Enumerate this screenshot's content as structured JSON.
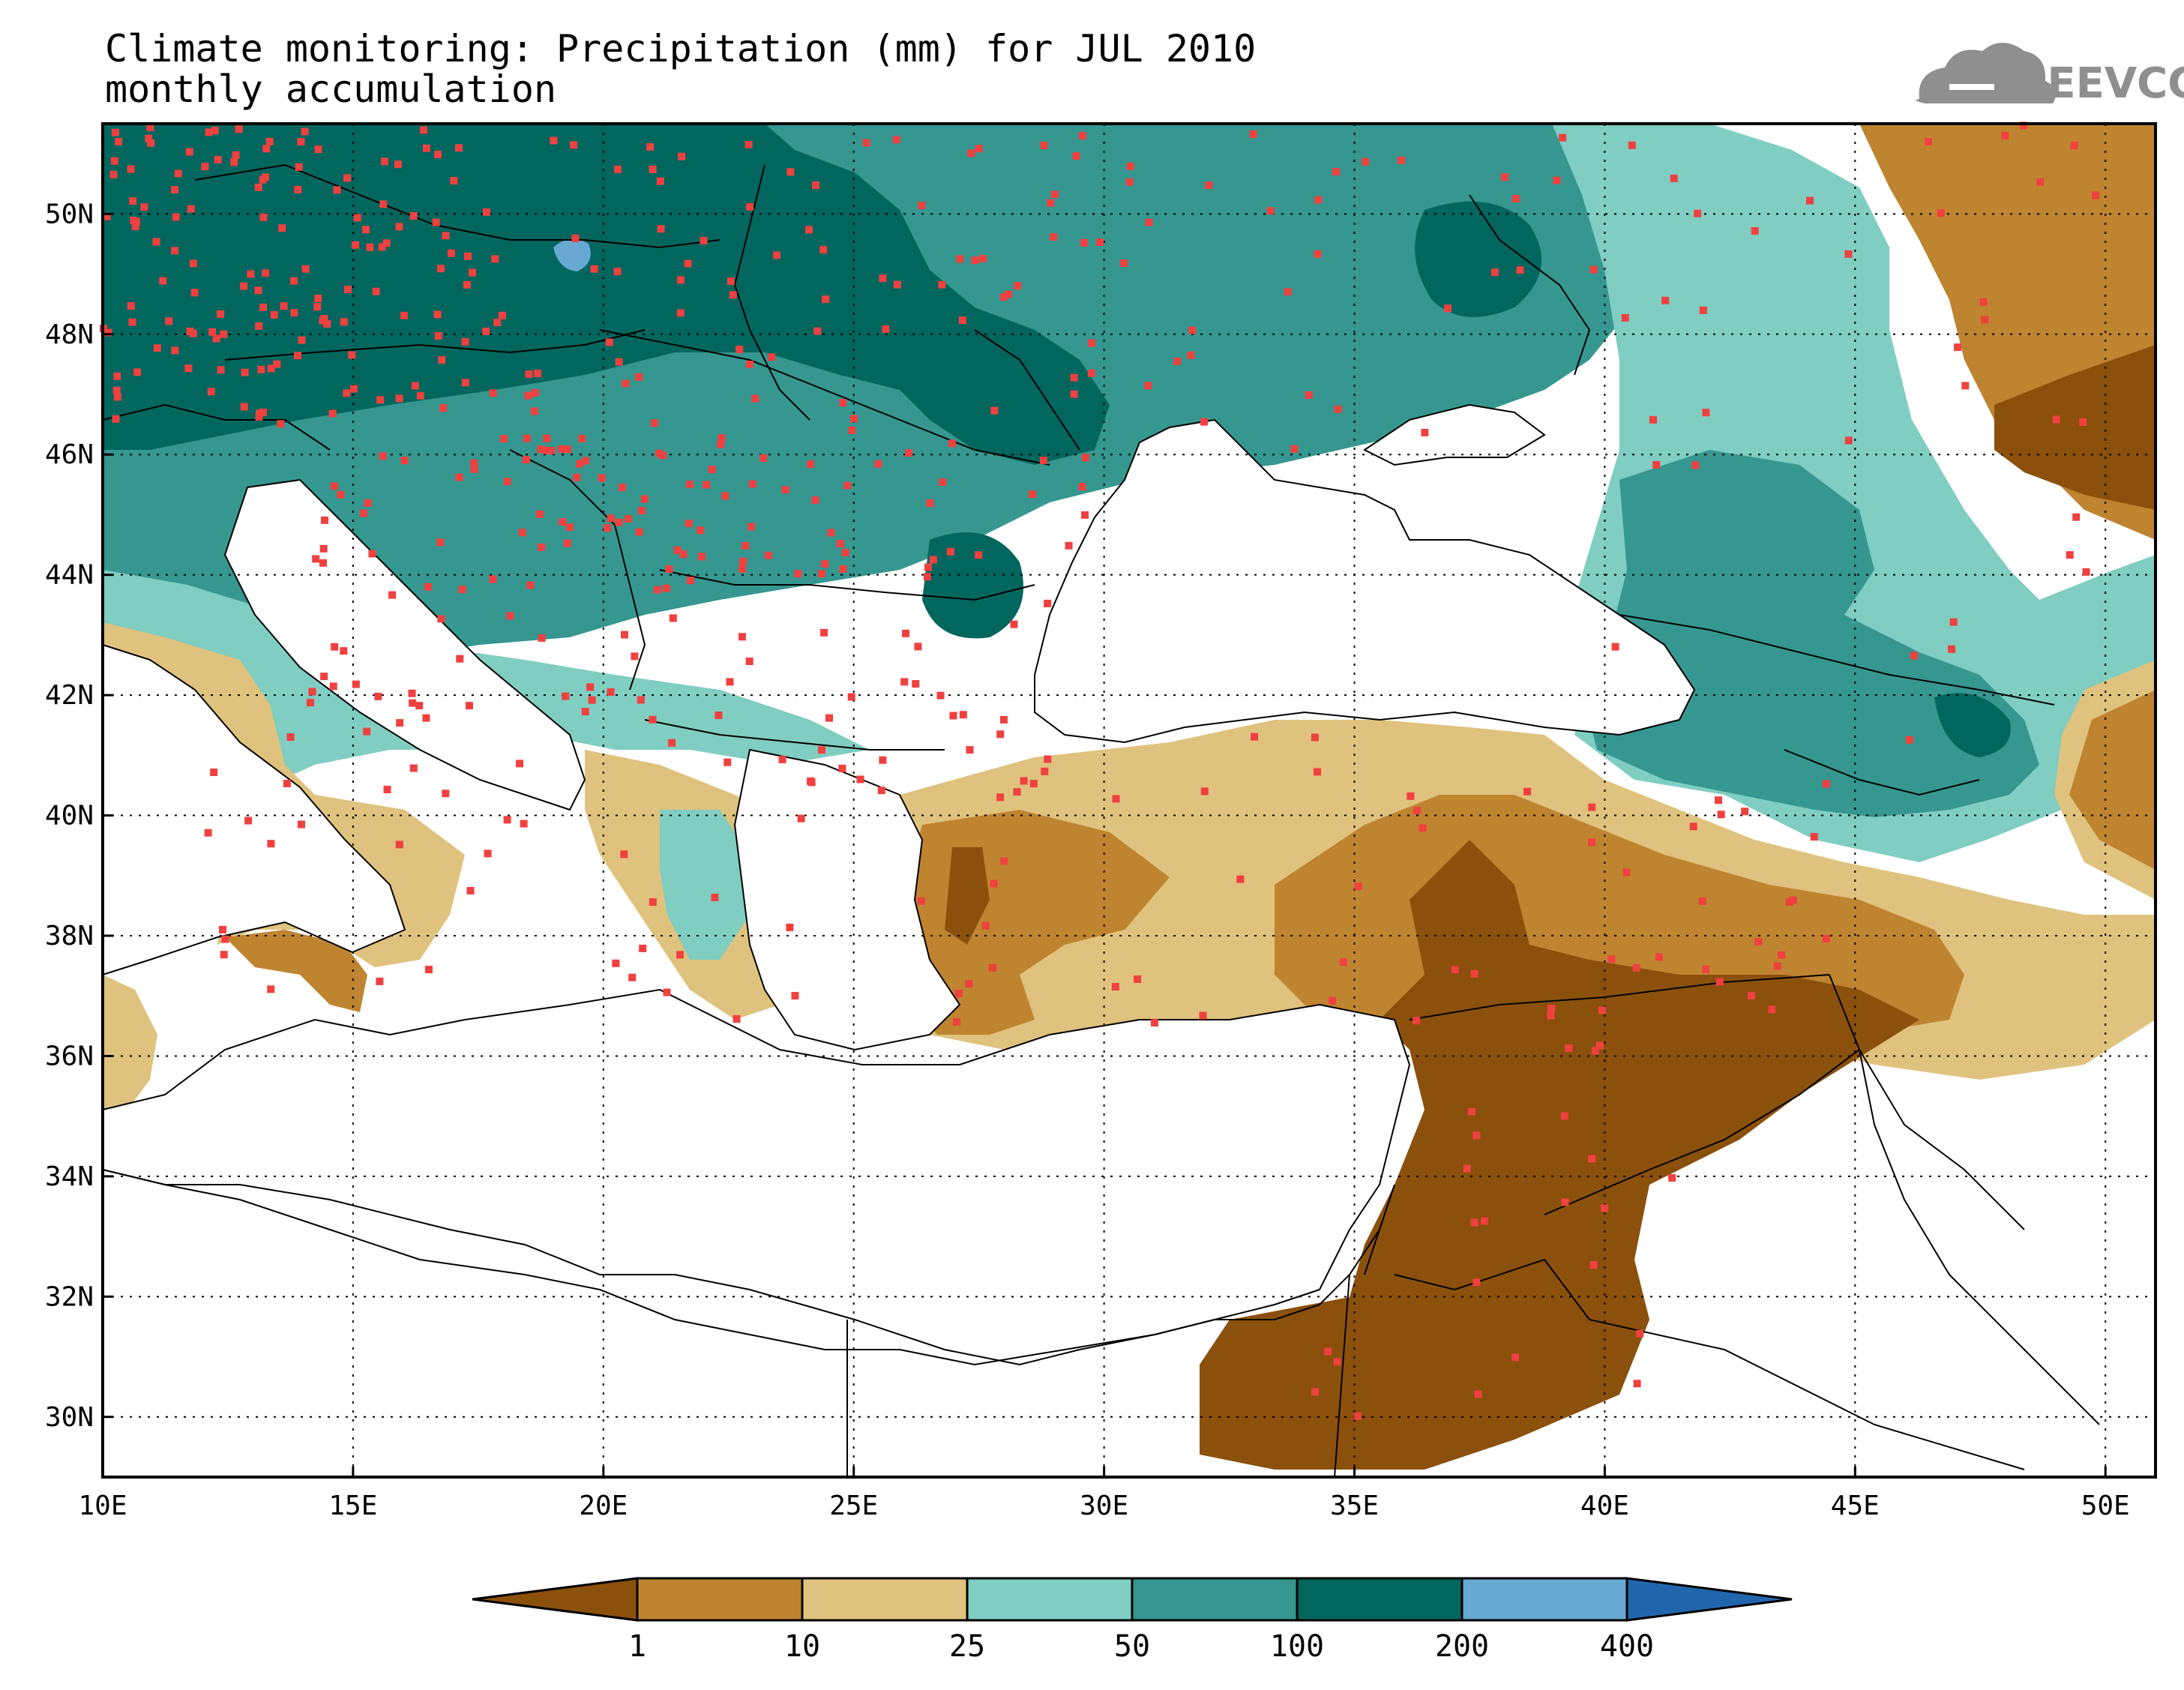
{
  "title": {
    "line1": "Climate monitoring: Precipitation (mm) for JUL 2010",
    "line2": "monthly accumulation"
  },
  "logo": {
    "text": "SEEVCCC",
    "icon": "cloud-icon",
    "color": "#8f8f8f"
  },
  "map": {
    "lon_range": [
      10,
      51
    ],
    "lat_range": [
      29,
      51.5
    ],
    "lon_ticks": [
      10,
      15,
      20,
      25,
      30,
      35,
      40,
      45,
      50
    ],
    "lon_tick_labels": [
      "10E",
      "15E",
      "20E",
      "25E",
      "30E",
      "35E",
      "40E",
      "45E",
      "50E"
    ],
    "lat_ticks": [
      30,
      32,
      34,
      36,
      38,
      40,
      42,
      44,
      46,
      48,
      50
    ],
    "lat_tick_labels": [
      "30N",
      "32N",
      "34N",
      "36N",
      "38N",
      "40N",
      "42N",
      "44N",
      "46N",
      "48N",
      "50N"
    ],
    "grid": "dotted",
    "station_color": "#f04040"
  },
  "legend": {
    "levels": [
      "1",
      "10",
      "25",
      "50",
      "100",
      "200",
      "400"
    ],
    "colors": [
      "#8b500c",
      "#bf8430",
      "#dfc27d",
      "#80cdc1",
      "#35978f",
      "#01665e",
      "#6aa8d4",
      "#2166ac"
    ],
    "units": "mm"
  }
}
